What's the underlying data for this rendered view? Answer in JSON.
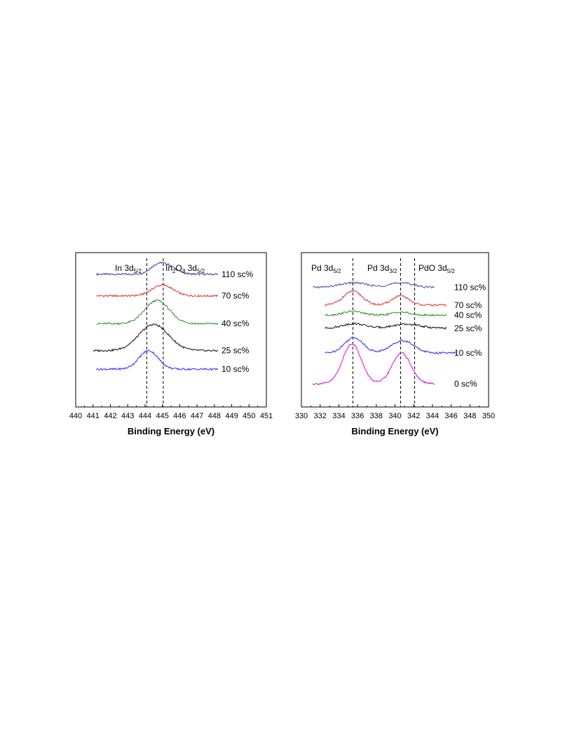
{
  "chart_data": [
    {
      "type": "line",
      "xlabel": "Binding Energy (eV)",
      "xlim": [
        440,
        451
      ],
      "xticks": [
        "440",
        "441",
        "442",
        "443",
        "444",
        "445",
        "446",
        "447",
        "448",
        "449",
        "450",
        "451"
      ],
      "reference_lines": [
        {
          "x": 444.1,
          "label_main": "In 3d",
          "label_sub": "5/2",
          "label_sub2": ""
        },
        {
          "x": 445.05,
          "label_main": "In",
          "label_sub": "2",
          "label_mid": "O",
          "label_sub2": "3",
          "label_tail": " 3d",
          "label_sub3": "5/2"
        }
      ],
      "series": [
        {
          "name": "110 sc%",
          "color": "#4e4e9e",
          "x_range": [
            441.2,
            448.2
          ],
          "baseline": 0.86,
          "peaks": [
            {
              "x": 445.2,
              "h": 0.06,
              "w": 0.55
            },
            {
              "x": 444.6,
              "h": 0.03,
              "w": 0.4
            }
          ]
        },
        {
          "name": "70 sc%",
          "color": "#e04848",
          "x_range": [
            441.2,
            448.2
          ],
          "baseline": 0.72,
          "peaks": [
            {
              "x": 445.0,
              "h": 0.07,
              "w": 0.6
            }
          ]
        },
        {
          "name": "40 sc%",
          "color": "#3c9a3c",
          "x_range": [
            441.2,
            448.2
          ],
          "baseline": 0.54,
          "peaks": [
            {
              "x": 444.7,
              "h": 0.15,
              "w": 0.7
            }
          ]
        },
        {
          "name": "25 sc%",
          "color": "#222222",
          "x_range": [
            441.0,
            448.2
          ],
          "baseline": 0.365,
          "peaks": [
            {
              "x": 444.5,
              "h": 0.17,
              "w": 0.85
            }
          ]
        },
        {
          "name": "10 sc%",
          "color": "#3d3df0",
          "x_range": [
            441.2,
            448.2
          ],
          "baseline": 0.245,
          "peaks": [
            {
              "x": 444.2,
              "h": 0.12,
              "w": 0.55
            }
          ]
        }
      ]
    },
    {
      "type": "line",
      "xlabel": "Binding Energy (eV)",
      "xlim": [
        330,
        350
      ],
      "xticks": [
        "330",
        "332",
        "334",
        "336",
        "338",
        "340",
        "342",
        "344",
        "346",
        "348",
        "350"
      ],
      "reference_lines": [
        {
          "x": 335.5,
          "label_main": "Pd 3d",
          "label_sub": "5/2"
        },
        {
          "x": 340.6,
          "label_main": "Pd 3d",
          "label_sub": "3/2"
        },
        {
          "x": 342.1,
          "label_main": "PdO 3d",
          "label_sub": "5/2"
        }
      ],
      "series": [
        {
          "name": "110 sc%",
          "color": "#5a5aa8",
          "x_range": [
            331.2,
            344.2
          ],
          "baseline": 0.775,
          "peaks": [
            {
              "x": 335.6,
              "h": 0.03,
              "w": 1.4
            },
            {
              "x": 340.7,
              "h": 0.03,
              "w": 1.2
            }
          ]
        },
        {
          "name": "70 sc%",
          "color": "#e04848",
          "x_range": [
            332.5,
            345.5
          ],
          "baseline": 0.66,
          "peaks": [
            {
              "x": 335.5,
              "h": 0.09,
              "w": 1.0
            },
            {
              "x": 340.6,
              "h": 0.06,
              "w": 0.9
            }
          ]
        },
        {
          "name": "40 sc%",
          "color": "#3c9a3c",
          "x_range": [
            332.5,
            345.5
          ],
          "baseline": 0.595,
          "peaks": [
            {
              "x": 335.5,
              "h": 0.025,
              "w": 1.0
            },
            {
              "x": 340.6,
              "h": 0.02,
              "w": 0.9
            }
          ]
        },
        {
          "name": "25 sc%",
          "color": "#222222",
          "x_range": [
            332.5,
            345.5
          ],
          "baseline": 0.51,
          "peaks": [
            {
              "x": 335.6,
              "h": 0.03,
              "w": 1.2
            },
            {
              "x": 341.2,
              "h": 0.025,
              "w": 1.5
            }
          ]
        },
        {
          "name": "10 sc%",
          "color": "#3d3df0",
          "x_range": [
            332.5,
            346.5
          ],
          "baseline": 0.35,
          "peaks": [
            {
              "x": 335.6,
              "h": 0.1,
              "w": 1.0
            },
            {
              "x": 340.8,
              "h": 0.08,
              "w": 1.2
            }
          ]
        },
        {
          "name": "0 sc%",
          "color": "#e020d8",
          "x_range": [
            331.2,
            344.2
          ],
          "baseline": 0.15,
          "peaks": [
            {
              "x": 335.4,
              "h": 0.26,
              "w": 1.0
            },
            {
              "x": 340.7,
              "h": 0.2,
              "w": 1.0
            }
          ]
        }
      ]
    }
  ]
}
